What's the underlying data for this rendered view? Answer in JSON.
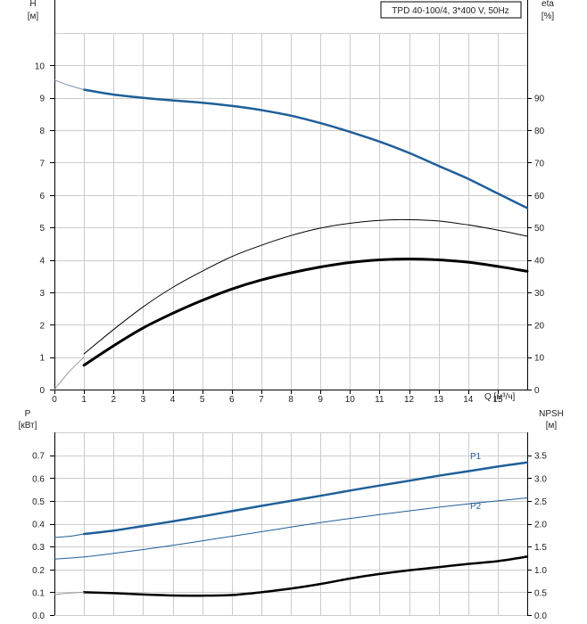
{
  "colors": {
    "blue": "#1f5f99",
    "black": "#000000",
    "grid": "#cccccc"
  },
  "chart_data": [
    {
      "type": "line",
      "title": "TPD 40-100/4, 3*400 V, 50Hz",
      "xlabel": "Q [м³/ч]",
      "ylabel": "H",
      "ylabel_unit": "[м]",
      "y2label": "eta",
      "y2label_unit": "[%]",
      "xlim": [
        0,
        16
      ],
      "ylim": [
        0,
        11
      ],
      "y2lim": [
        0,
        110
      ],
      "x_ticks": [
        "0",
        "1",
        "2",
        "3",
        "4",
        "5",
        "6",
        "7",
        "8",
        "9",
        "10",
        "11",
        "12",
        "13",
        "14",
        "15"
      ],
      "y_ticks": [
        "0",
        "1",
        "2",
        "3",
        "4",
        "5",
        "6",
        "7",
        "8",
        "9",
        "10"
      ],
      "y2_ticks": [
        "0",
        "10",
        "20",
        "30",
        "40",
        "50",
        "60",
        "70",
        "80",
        "90"
      ],
      "grid": true,
      "series": [
        {
          "color": "#1f5f99",
          "axis": "left",
          "width": 2.5,
          "x": [
            1,
            2,
            3,
            4,
            5,
            6,
            7,
            8,
            9,
            10,
            11,
            12,
            13,
            14,
            15,
            16
          ],
          "y": [
            9.25,
            9.1,
            9.0,
            8.92,
            8.85,
            8.75,
            8.62,
            8.45,
            8.22,
            7.95,
            7.65,
            7.3,
            6.9,
            6.5,
            6.05,
            5.6
          ]
        },
        {
          "color": "#8090b0",
          "axis": "left",
          "width": 1,
          "x": [
            0,
            0.5,
            1
          ],
          "y": [
            9.55,
            9.38,
            9.25
          ]
        },
        {
          "color": "#000000",
          "axis": "right",
          "width": 1,
          "x": [
            1,
            2,
            3,
            4,
            5,
            6,
            7,
            8,
            9,
            10,
            11,
            12,
            13,
            14,
            15,
            16
          ],
          "y": [
            11,
            18.5,
            25.5,
            31.5,
            36.5,
            41,
            44.5,
            47.5,
            49.8,
            51.3,
            52.2,
            52.4,
            52.0,
            50.8,
            49.2,
            47.3
          ]
        },
        {
          "color": "#000000",
          "axis": "right",
          "width": 3,
          "x": [
            1,
            2,
            3,
            4,
            5,
            6,
            7,
            8,
            9,
            10,
            11,
            12,
            13,
            14,
            15,
            16
          ],
          "y": [
            7.5,
            13.5,
            19,
            23.5,
            27.5,
            31,
            33.8,
            36,
            37.8,
            39.2,
            40.0,
            40.3,
            40.0,
            39.3,
            38.0,
            36.5
          ]
        },
        {
          "color": "#9a9a9a",
          "axis": "right",
          "width": 1,
          "x": [
            0,
            0.5,
            1
          ],
          "y": [
            0,
            5.5,
            10
          ]
        }
      ]
    },
    {
      "type": "line",
      "xlabel": "",
      "ylabel": "P",
      "ylabel_unit": "[кВт]",
      "y2label": "NPSH",
      "y2label_unit": "[м]",
      "xlim": [
        0,
        16
      ],
      "ylim": [
        0,
        0.8
      ],
      "y2lim": [
        0,
        4.0
      ],
      "y_ticks": [
        "0.0",
        "0.1",
        "0.2",
        "0.3",
        "0.4",
        "0.5",
        "0.6",
        "0.7"
      ],
      "y2_ticks": [
        "0.0",
        "0.5",
        "1.0",
        "1.5",
        "2.0",
        "2.5",
        "3.0",
        "3.5"
      ],
      "grid": true,
      "series": [
        {
          "name": "P1",
          "color": "#1f5f99",
          "axis": "left",
          "width": 2.5,
          "x": [
            1,
            2,
            3,
            4,
            5,
            6,
            7,
            8,
            9,
            10,
            11,
            12,
            13,
            14,
            15,
            16
          ],
          "y": [
            0.355,
            0.37,
            0.39,
            0.41,
            0.432,
            0.455,
            0.478,
            0.5,
            0.522,
            0.545,
            0.567,
            0.588,
            0.61,
            0.63,
            0.65,
            0.668
          ]
        },
        {
          "color": "#1f5f99",
          "axis": "left",
          "width": 1,
          "x": [
            0,
            0.5,
            1
          ],
          "y": [
            0.34,
            0.345,
            0.355
          ]
        },
        {
          "name": "P2",
          "color": "#1f5f99",
          "axis": "left",
          "width": 1,
          "x": [
            0,
            1,
            2,
            3,
            4,
            5,
            6,
            7,
            8,
            9,
            10,
            11,
            12,
            13,
            14,
            15,
            16
          ],
          "y": [
            0.245,
            0.255,
            0.27,
            0.287,
            0.305,
            0.325,
            0.345,
            0.365,
            0.385,
            0.405,
            0.423,
            0.44,
            0.456,
            0.472,
            0.487,
            0.5,
            0.513
          ]
        },
        {
          "color": "#000000",
          "axis": "right",
          "width": 2.5,
          "x": [
            1,
            2,
            3,
            4,
            5,
            6,
            7,
            8,
            9,
            10,
            11,
            12,
            13,
            14,
            15,
            16
          ],
          "y": [
            0.5,
            0.48,
            0.45,
            0.43,
            0.425,
            0.44,
            0.5,
            0.58,
            0.68,
            0.8,
            0.9,
            0.98,
            1.05,
            1.12,
            1.18,
            1.28
          ]
        },
        {
          "color": "#9a9a9a",
          "axis": "right",
          "width": 1,
          "x": [
            0,
            0.5,
            1
          ],
          "y": [
            0.45,
            0.48,
            0.5
          ]
        }
      ]
    }
  ]
}
